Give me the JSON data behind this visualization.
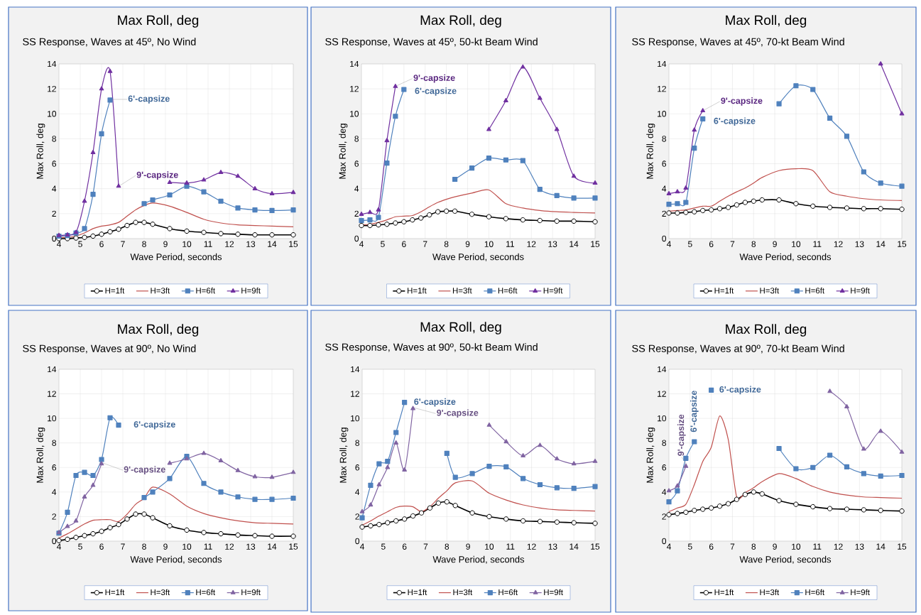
{
  "chart_data": [
    {
      "type": "line",
      "title": "Max Roll, deg",
      "subtitle": "SS Response, Waves at 45º, No Wind",
      "xlabel": "Wave Period, seconds",
      "ylabel": "Max Roll, deg",
      "xlim": [
        4,
        15
      ],
      "ylim": [
        0,
        14
      ],
      "xticks": [
        4,
        5,
        6,
        7,
        8,
        9,
        10,
        11,
        12,
        13,
        14,
        15
      ],
      "yticks": [
        0,
        2,
        4,
        6,
        8,
        10,
        12,
        14
      ],
      "grid": true,
      "legend": "bottom",
      "x": [
        4,
        4.4,
        4.8,
        5.2,
        5.6,
        6,
        6.4,
        6.8,
        7.2,
        7.6,
        8,
        8.4,
        9.2,
        10,
        10.8,
        11.6,
        12.4,
        13.2,
        14,
        15
      ],
      "series": [
        {
          "name": "H=1ft",
          "color": "#000000",
          "marker": "circle",
          "values": [
            0,
            0,
            0.05,
            0.1,
            0.2,
            0.35,
            0.55,
            0.75,
            1.05,
            1.3,
            1.3,
            1.15,
            0.8,
            0.6,
            0.5,
            0.4,
            0.35,
            0.3,
            0.3,
            0.3
          ]
        },
        {
          "name": "H=3ft",
          "color": "#c0504d",
          "marker": "none",
          "values": [
            0.1,
            0.1,
            0.2,
            0.45,
            0.8,
            1.0,
            1.1,
            1.3,
            1.8,
            2.3,
            2.65,
            2.85,
            2.6,
            2.1,
            1.55,
            1.25,
            1.1,
            1.05,
            1.0,
            0.95
          ]
        },
        {
          "name": "H=6ft",
          "color": "#4f81bd",
          "marker": "square",
          "values": [
            0.2,
            0.25,
            0.45,
            0.8,
            3.55,
            8.4,
            11.1,
            null,
            null,
            null,
            2.8,
            3.1,
            3.5,
            4.2,
            3.75,
            3.0,
            2.45,
            2.3,
            2.25,
            2.3
          ]
        },
        {
          "name": "H=9ft",
          "color": "#7030a0",
          "marker": "triangle",
          "values": [
            0.25,
            0.3,
            0.5,
            3.0,
            6.9,
            12.0,
            13.4,
            4.2,
            null,
            null,
            null,
            null,
            4.5,
            4.45,
            4.7,
            5.3,
            5.0,
            4.0,
            3.6,
            3.7
          ]
        }
      ],
      "annotations": [
        {
          "text": "6'-capsize",
          "x": 6.4,
          "y": 11.1
        },
        {
          "text": "9'-capsize",
          "x": 6.8,
          "y": 4.2
        }
      ]
    },
    {
      "type": "line",
      "title": "Max Roll, deg",
      "subtitle": "SS Response, Waves at 45º, 50-kt Beam Wind",
      "xlabel": "Wave Period, seconds",
      "ylabel": "Max Roll, deg",
      "xlim": [
        4,
        15
      ],
      "ylim": [
        0,
        14
      ],
      "xticks": [
        4,
        5,
        6,
        7,
        8,
        9,
        10,
        11,
        12,
        13,
        14,
        15
      ],
      "yticks": [
        0,
        2,
        4,
        6,
        8,
        10,
        12,
        14
      ],
      "grid": true,
      "legend": "bottom",
      "x": [
        4,
        4.4,
        4.8,
        5.2,
        5.6,
        6,
        6.4,
        6.8,
        7.2,
        7.6,
        8,
        8.4,
        9.2,
        10,
        10.8,
        11.6,
        12.4,
        13.2,
        14,
        15
      ],
      "series": [
        {
          "name": "H=1ft",
          "color": "#000000",
          "marker": "circle",
          "values": [
            1.05,
            1.05,
            1.1,
            1.15,
            1.25,
            1.35,
            1.5,
            1.65,
            1.9,
            2.15,
            2.2,
            2.2,
            1.95,
            1.75,
            1.6,
            1.5,
            1.45,
            1.4,
            1.4,
            1.35
          ]
        },
        {
          "name": "H=3ft",
          "color": "#c0504d",
          "marker": "none",
          "values": [
            1.1,
            1.15,
            1.3,
            1.5,
            1.75,
            1.8,
            1.85,
            2.15,
            2.55,
            2.9,
            3.15,
            3.35,
            3.65,
            3.9,
            2.8,
            2.45,
            2.25,
            2.15,
            2.1,
            2.05
          ]
        },
        {
          "name": "H=6ft",
          "color": "#4f81bd",
          "marker": "square",
          "values": [
            1.45,
            1.5,
            1.7,
            6.05,
            9.8,
            11.95,
            null,
            null,
            null,
            null,
            null,
            4.75,
            5.65,
            6.45,
            6.3,
            6.25,
            3.95,
            3.45,
            3.25,
            3.25
          ]
        },
        {
          "name": "H=9ft",
          "color": "#7030a0",
          "marker": "triangle",
          "values": [
            1.95,
            2.1,
            2.3,
            7.85,
            12.2,
            null,
            null,
            null,
            null,
            null,
            null,
            null,
            null,
            8.75,
            11.05,
            13.75,
            11.25,
            8.75,
            5.0,
            4.45
          ]
        }
      ],
      "annotations": [
        {
          "text": "9'-capsize",
          "x": 5.6,
          "y": 12.2
        },
        {
          "text": "6'-capsize",
          "x": 6,
          "y": 11.95
        }
      ]
    },
    {
      "type": "line",
      "title": "Max Roll, deg",
      "subtitle": "SS Response, Waves at 45º, 70-kt Beam Wind",
      "xlabel": "Wave Period, seconds",
      "ylabel": "Max Roll, deg",
      "xlim": [
        4,
        15
      ],
      "ylim": [
        0,
        14
      ],
      "xticks": [
        4,
        5,
        6,
        7,
        8,
        9,
        10,
        11,
        12,
        13,
        14,
        15
      ],
      "yticks": [
        0,
        2,
        4,
        6,
        8,
        10,
        12,
        14
      ],
      "grid": true,
      "legend": "bottom",
      "x": [
        4,
        4.4,
        4.8,
        5.2,
        5.6,
        6,
        6.4,
        6.8,
        7.2,
        7.6,
        8,
        8.4,
        9.2,
        10,
        10.8,
        11.6,
        12.4,
        13.2,
        14,
        15
      ],
      "series": [
        {
          "name": "H=1ft",
          "color": "#000000",
          "marker": "circle",
          "values": [
            2.05,
            2.05,
            2.1,
            2.15,
            2.25,
            2.3,
            2.4,
            2.5,
            2.7,
            2.9,
            3.0,
            3.1,
            3.1,
            2.8,
            2.6,
            2.5,
            2.45,
            2.4,
            2.4,
            2.35
          ]
        },
        {
          "name": "H=3ft",
          "color": "#c0504d",
          "marker": "none",
          "values": [
            2.2,
            2.25,
            2.3,
            2.45,
            2.6,
            2.6,
            3.0,
            3.4,
            3.75,
            4.05,
            4.45,
            4.9,
            5.45,
            5.6,
            5.45,
            3.75,
            3.4,
            3.2,
            3.1,
            3.05
          ]
        },
        {
          "name": "H=6ft",
          "color": "#4f81bd",
          "marker": "square",
          "values": [
            2.75,
            2.8,
            2.9,
            7.25,
            9.6,
            null,
            null,
            null,
            null,
            null,
            null,
            null,
            10.8,
            12.25,
            11.95,
            9.65,
            8.2,
            5.35,
            4.45,
            4.2
          ]
        },
        {
          "name": "H=9ft",
          "color": "#7030a0",
          "marker": "triangle",
          "values": [
            3.6,
            3.75,
            4.05,
            8.7,
            10.25,
            null,
            null,
            null,
            null,
            null,
            null,
            null,
            null,
            null,
            null,
            null,
            null,
            null,
            14.0,
            10.0
          ]
        }
      ],
      "annotations": [
        {
          "text": "9'-capsize",
          "x": 5.6,
          "y": 10.25
        },
        {
          "text": "6'-capsize",
          "x": 5.6,
          "y": 9.6
        }
      ]
    },
    {
      "type": "line",
      "title": "Max Roll, deg",
      "subtitle": "SS Response, Waves at 90º, No Wind",
      "xlabel": "Wave Period, seconds",
      "ylabel": "Max Roll, deg",
      "xlim": [
        4,
        15
      ],
      "ylim": [
        0,
        14
      ],
      "xticks": [
        4,
        5,
        6,
        7,
        8,
        9,
        10,
        11,
        12,
        13,
        14,
        15
      ],
      "yticks": [
        0,
        2,
        4,
        6,
        8,
        10,
        12,
        14
      ],
      "grid": true,
      "legend": "bottom",
      "x": [
        4,
        4.4,
        4.8,
        5.2,
        5.6,
        6,
        6.4,
        6.8,
        7.2,
        7.6,
        8,
        8.4,
        9.2,
        10,
        10.8,
        11.6,
        12.4,
        13.2,
        14,
        15
      ],
      "series": [
        {
          "name": "H=1ft",
          "color": "#000000",
          "marker": "circle",
          "values": [
            0.05,
            0.15,
            0.3,
            0.45,
            0.6,
            0.8,
            1.1,
            1.35,
            1.8,
            2.2,
            2.2,
            1.9,
            1.25,
            0.9,
            0.7,
            0.6,
            0.5,
            0.45,
            0.4,
            0.4
          ]
        },
        {
          "name": "H=3ft",
          "color": "#c0504d",
          "marker": "none",
          "values": [
            0.25,
            0.6,
            1.0,
            1.4,
            1.7,
            1.75,
            1.75,
            1.6,
            2.2,
            3.0,
            3.5,
            4.4,
            3.85,
            2.85,
            2.25,
            1.9,
            1.65,
            1.5,
            1.45,
            1.4
          ]
        },
        {
          "name": "H=6ft",
          "color": "#4f81bd",
          "marker": "square",
          "values": [
            0.65,
            2.35,
            5.35,
            5.6,
            5.35,
            6.65,
            10.05,
            9.45,
            null,
            null,
            3.55,
            4.0,
            5.1,
            6.9,
            4.7,
            4.0,
            3.6,
            3.4,
            3.4,
            3.5
          ]
        },
        {
          "name": "H=9ft",
          "color": "#8064a2",
          "marker": "triangle",
          "values": [
            0.7,
            1.2,
            1.65,
            3.6,
            4.55,
            6.3,
            null,
            null,
            null,
            null,
            null,
            null,
            6.35,
            6.7,
            7.15,
            6.55,
            5.75,
            5.25,
            5.2,
            5.6
          ]
        }
      ],
      "annotations": [
        {
          "text": "6'-capsize",
          "x": 6.8,
          "y": 9.45
        },
        {
          "text": "9'-capsize",
          "x": 6,
          "y": 6.3
        }
      ]
    },
    {
      "type": "line",
      "title": "Max Roll, deg",
      "subtitle": "SS Response, Waves at 90º, 50-kt Beam Wind",
      "xlabel": "Wave Period, seconds",
      "ylabel": "Max Roll, deg",
      "xlim": [
        4,
        15
      ],
      "ylim": [
        0,
        14
      ],
      "xticks": [
        4,
        5,
        6,
        7,
        8,
        9,
        10,
        11,
        12,
        13,
        14,
        15
      ],
      "yticks": [
        0,
        2,
        4,
        6,
        8,
        10,
        12,
        14
      ],
      "grid": true,
      "legend": "bottom",
      "x": [
        4,
        4.4,
        4.8,
        5.2,
        5.6,
        6,
        6.4,
        6.8,
        7.2,
        7.6,
        8,
        8.4,
        9.2,
        10,
        10.8,
        11.6,
        12.4,
        13.2,
        14,
        15
      ],
      "series": [
        {
          "name": "H=1ft",
          "color": "#000000",
          "marker": "circle",
          "values": [
            1.15,
            1.25,
            1.35,
            1.5,
            1.65,
            1.8,
            2.05,
            2.3,
            2.7,
            3.1,
            3.2,
            2.9,
            2.3,
            2.0,
            1.8,
            1.65,
            1.6,
            1.55,
            1.5,
            1.45
          ]
        },
        {
          "name": "H=3ft",
          "color": "#c0504d",
          "marker": "none",
          "values": [
            1.3,
            1.65,
            2.05,
            2.4,
            2.75,
            2.85,
            2.8,
            2.4,
            2.8,
            3.5,
            4.1,
            4.75,
            4.9,
            3.9,
            3.35,
            2.95,
            2.7,
            2.55,
            2.5,
            2.45
          ]
        },
        {
          "name": "H=6ft",
          "color": "#4f81bd",
          "marker": "square",
          "values": [
            1.9,
            4.55,
            6.3,
            6.5,
            8.85,
            11.3,
            null,
            null,
            null,
            null,
            7.15,
            5.2,
            5.5,
            6.1,
            6.05,
            5.1,
            4.6,
            4.35,
            4.3,
            4.45
          ]
        },
        {
          "name": "H=9ft",
          "color": "#8064a2",
          "marker": "triangle",
          "values": [
            2.4,
            2.95,
            4.6,
            6.0,
            8.0,
            5.8,
            10.8,
            null,
            null,
            null,
            null,
            null,
            null,
            9.45,
            8.1,
            6.95,
            7.8,
            6.7,
            6.3,
            6.5
          ]
        }
      ],
      "annotations": [
        {
          "text": "6'-capsize",
          "x": 6,
          "y": 11.3
        },
        {
          "text": "9'-capsize",
          "x": 6.4,
          "y": 10.8
        }
      ]
    },
    {
      "type": "line",
      "title": "Max Roll, deg",
      "subtitle": "SS Response, Waves at 90º, 70-kt Beam Wind",
      "xlabel": "Wave Period, seconds",
      "ylabel": "Max Roll, deg",
      "xlim": [
        4,
        15
      ],
      "ylim": [
        0,
        14
      ],
      "xticks": [
        4,
        5,
        6,
        7,
        8,
        9,
        10,
        11,
        12,
        13,
        14,
        15
      ],
      "yticks": [
        0,
        2,
        4,
        6,
        8,
        10,
        12,
        14
      ],
      "grid": true,
      "legend": "bottom",
      "x": [
        4,
        4.4,
        4.8,
        5.2,
        5.6,
        6,
        6.4,
        6.8,
        7.2,
        7.6,
        8,
        8.4,
        9.2,
        10,
        10.8,
        11.6,
        12.4,
        13.2,
        14,
        15
      ],
      "series": [
        {
          "name": "H=1ft",
          "color": "#000000",
          "marker": "circle",
          "values": [
            2.15,
            2.25,
            2.35,
            2.5,
            2.6,
            2.7,
            2.85,
            3.05,
            3.4,
            3.8,
            4.0,
            3.85,
            3.3,
            3.0,
            2.8,
            2.65,
            2.6,
            2.55,
            2.5,
            2.45
          ]
        },
        {
          "name": "H=3ft",
          "color": "#c0504d",
          "marker": "none",
          "values": [
            2.4,
            2.7,
            3.0,
            4.6,
            6.5,
            7.65,
            10.2,
            8.3,
            3.6,
            3.95,
            4.35,
            4.85,
            5.5,
            5.1,
            4.45,
            4.0,
            3.75,
            3.6,
            3.55,
            3.5
          ]
        },
        {
          "name": "H=6ft",
          "color": "#4f81bd",
          "marker": "square",
          "values": [
            3.2,
            4.1,
            6.75,
            8.1,
            null,
            12.3,
            null,
            null,
            null,
            null,
            null,
            null,
            7.55,
            5.9,
            6.0,
            7.0,
            6.05,
            5.5,
            5.3,
            5.35
          ]
        },
        {
          "name": "H=9ft",
          "color": "#8064a2",
          "marker": "triangle",
          "values": [
            4.1,
            4.5,
            6.1,
            null,
            null,
            null,
            null,
            null,
            null,
            null,
            null,
            null,
            null,
            null,
            null,
            12.2,
            10.95,
            7.5,
            8.95,
            7.25
          ]
        }
      ],
      "annotations": [
        {
          "text": "9'-capsize",
          "x": 4.8,
          "y": 6.1
        },
        {
          "text": "6'-capsize",
          "x": 5.2,
          "y": 8.1
        },
        {
          "text": "6'-capsize",
          "x": 6,
          "y": 12.3
        }
      ]
    }
  ]
}
